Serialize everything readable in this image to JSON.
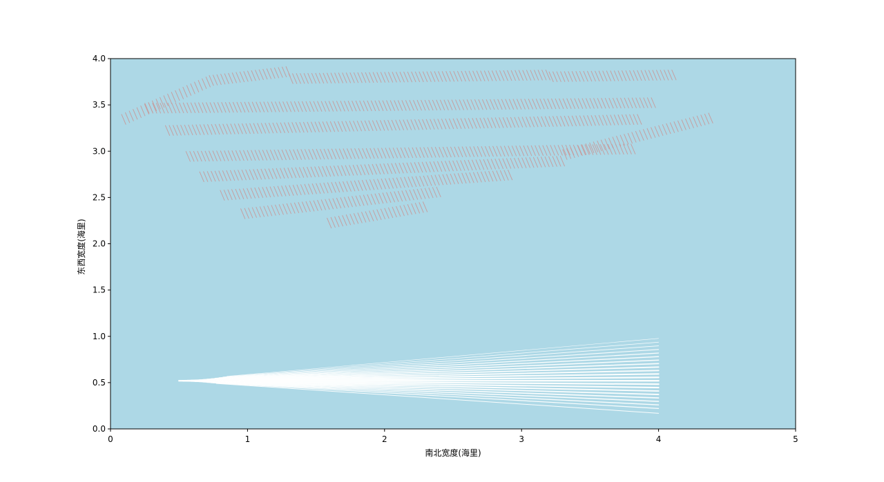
{
  "chart_data": {
    "type": "scatter",
    "title": "",
    "xlabel": "南北宽度(海里)",
    "ylabel": "东西宽度(海里)",
    "xlim": [
      0,
      5
    ],
    "ylim": [
      0,
      4
    ],
    "xticks": [
      "0",
      "1",
      "2",
      "3",
      "4",
      "5"
    ],
    "yticks": [
      "0.0",
      "0.5",
      "1.0",
      "1.5",
      "2.0",
      "2.5",
      "3.0",
      "3.5",
      "4.0"
    ],
    "grid": false,
    "legend": "none",
    "colors": {
      "background": "#add8e6",
      "segments": "#c79a9a",
      "rays": "#ffffff",
      "axes": "#000000"
    },
    "series": [
      {
        "kind": "short-segment-field",
        "direction_deg": -60,
        "segment_length": 0.13,
        "column_spacing": 0.028,
        "rows": [
          {
            "x_start": 0.08,
            "x_end": 0.72,
            "y_start": 3.4,
            "y_end": 3.82
          },
          {
            "x_start": 0.72,
            "x_end": 1.3,
            "y_start": 3.82,
            "y_end": 3.92
          },
          {
            "x_start": 1.3,
            "x_end": 3.2,
            "y_start": 3.84,
            "y_end": 3.88
          },
          {
            "x_start": 3.2,
            "x_end": 4.1,
            "y_start": 3.86,
            "y_end": 3.88
          },
          {
            "x_start": 0.25,
            "x_end": 3.95,
            "y_start": 3.52,
            "y_end": 3.58
          },
          {
            "x_start": 0.4,
            "x_end": 3.85,
            "y_start": 3.28,
            "y_end": 3.4
          },
          {
            "x_start": 3.3,
            "x_end": 4.38,
            "y_start": 3.02,
            "y_end": 3.42
          },
          {
            "x_start": 0.55,
            "x_end": 3.8,
            "y_start": 3.0,
            "y_end": 3.08
          },
          {
            "x_start": 0.65,
            "x_end": 3.3,
            "y_start": 2.78,
            "y_end": 2.95
          },
          {
            "x_start": 0.8,
            "x_end": 2.9,
            "y_start": 2.58,
            "y_end": 2.8
          },
          {
            "x_start": 0.95,
            "x_end": 2.4,
            "y_start": 2.38,
            "y_end": 2.62
          },
          {
            "x_start": 1.58,
            "x_end": 2.3,
            "y_start": 2.28,
            "y_end": 2.46
          }
        ]
      },
      {
        "kind": "ray-fan",
        "origin": [
          0.48,
          0.52
        ],
        "x_end": 4.0,
        "angles_deg": [
          -14,
          -12,
          -10.5,
          -9,
          -7.5,
          -6,
          -4.5,
          -3,
          -1.5,
          0,
          1.5,
          3,
          4.5,
          6,
          7.5,
          9,
          10.5,
          12,
          13.5,
          15,
          16.5,
          18
        ]
      }
    ]
  }
}
